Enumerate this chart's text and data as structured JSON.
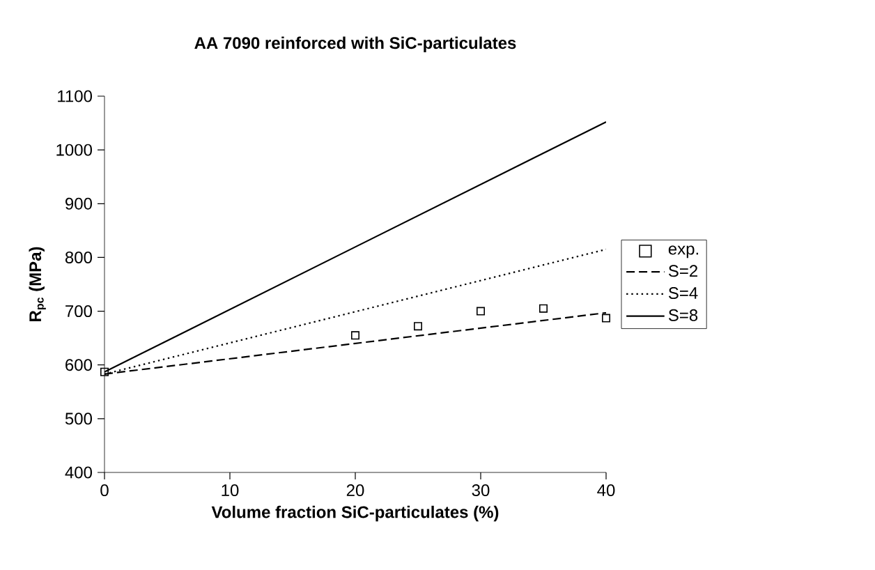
{
  "chart_data": {
    "type": "line",
    "title": "AA 7090 reinforced with SiC-particulates",
    "xlabel": "Volume fraction SiC-particulates (%)",
    "ylabel": "R$_{pc}$ (MPa)",
    "xlim": [
      0,
      40
    ],
    "xticks": [
      0,
      10,
      20,
      30,
      40
    ],
    "ylim": [
      400,
      1100
    ],
    "yticks": [
      400,
      500,
      600,
      700,
      800,
      900,
      1000,
      1100
    ],
    "grid": false,
    "legend": "right",
    "series": [
      {
        "name": "exp.",
        "type": "scatter",
        "marker": "square",
        "color": "#000000",
        "x": [
          0,
          20,
          25,
          30,
          35,
          40
        ],
        "values": [
          587,
          655,
          672,
          700,
          705,
          687
        ]
      },
      {
        "name": "S=2",
        "line_style": "dashed",
        "color": "#000000",
        "x": [
          0,
          40
        ],
        "values": [
          583,
          697
        ]
      },
      {
        "name": "S=4",
        "line_style": "dotted",
        "color": "#000000",
        "x": [
          0,
          40
        ],
        "values": [
          583,
          815
        ]
      },
      {
        "name": "S=8",
        "line_style": "solid",
        "color": "#000000",
        "x": [
          0,
          40
        ],
        "values": [
          587,
          1052
        ]
      }
    ]
  }
}
